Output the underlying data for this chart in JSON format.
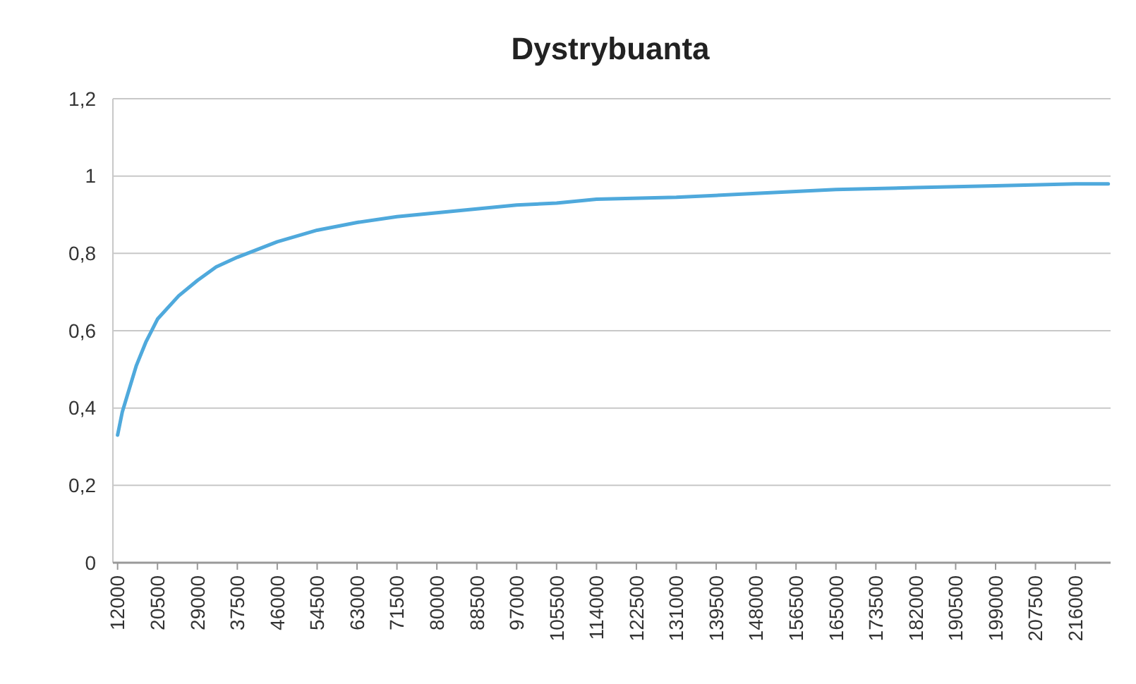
{
  "chart_data": {
    "type": "line",
    "title": "Dystrybuanta",
    "x": [
      12000,
      13000,
      14000,
      16000,
      18000,
      20500,
      25000,
      29000,
      33000,
      37500,
      46000,
      54500,
      63000,
      71500,
      80000,
      88500,
      97000,
      105500,
      114000,
      131000,
      148000,
      165000,
      182000,
      199000,
      216000,
      223000
    ],
    "series": [
      {
        "color": "#4fa9dc",
        "values": [
          0.33,
          0.39,
          0.43,
          0.51,
          0.57,
          0.63,
          0.69,
          0.73,
          0.765,
          0.79,
          0.83,
          0.86,
          0.88,
          0.895,
          0.905,
          0.915,
          0.925,
          0.93,
          0.94,
          0.945,
          0.955,
          0.965,
          0.97,
          0.975,
          0.98,
          0.98
        ]
      }
    ],
    "xlim": [
      11000,
      223500
    ],
    "xticks": [
      12000,
      20500,
      29000,
      37500,
      46000,
      54500,
      63000,
      71500,
      80000,
      88500,
      97000,
      105500,
      114000,
      122500,
      131000,
      139500,
      148000,
      156500,
      165000,
      173500,
      182000,
      190500,
      199000,
      207500,
      216000
    ],
    "ylim": [
      0,
      1.2
    ],
    "yticks": [
      {
        "value": 0,
        "label": "0"
      },
      {
        "value": 0.2,
        "label": "0,2"
      },
      {
        "value": 0.4,
        "label": "0,4"
      },
      {
        "value": 0.6,
        "label": "0,6"
      },
      {
        "value": 0.8,
        "label": "0,8"
      },
      {
        "value": 1,
        "label": "1"
      },
      {
        "value": 1.2,
        "label": "1,2"
      }
    ],
    "grid": "y",
    "legend": false,
    "marker": "none",
    "line_style": "solid"
  }
}
